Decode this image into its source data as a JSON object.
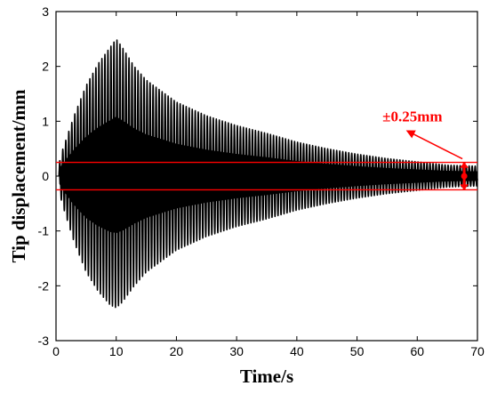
{
  "chart_data": {
    "type": "line",
    "title": "",
    "xlabel": "Time/s",
    "ylabel": "Tip displacement/mm",
    "xlim": [
      0,
      70
    ],
    "ylim": [
      -3,
      3
    ],
    "x_ticks": [
      0,
      10,
      20,
      30,
      40,
      50,
      60,
      70
    ],
    "y_ticks": [
      -3,
      -2,
      -1,
      0,
      1,
      2,
      3
    ],
    "grid": false,
    "series": [
      {
        "color": "#000000",
        "envelope_x": [
          0,
          1,
          3,
          5,
          7,
          9,
          10,
          11,
          13,
          15,
          20,
          25,
          30,
          35,
          40,
          45,
          50,
          55,
          60,
          65,
          70
        ],
        "envelope_upper": [
          0,
          0.45,
          1.1,
          1.65,
          2.05,
          2.35,
          2.5,
          2.35,
          2.0,
          1.75,
          1.35,
          1.1,
          0.92,
          0.78,
          0.62,
          0.5,
          0.4,
          0.32,
          0.26,
          0.2,
          0.18
        ],
        "envelope_lower": [
          0,
          -0.5,
          -1.2,
          -1.75,
          -2.1,
          -2.35,
          -2.4,
          -2.3,
          -2.0,
          -1.75,
          -1.35,
          -1.1,
          -0.92,
          -0.78,
          -0.62,
          -0.5,
          -0.4,
          -0.32,
          -0.26,
          -0.2,
          -0.18
        ],
        "oscillation_period": 0.5
      }
    ],
    "threshold_lines": [
      {
        "y": 0.25,
        "color": "#ff0000"
      },
      {
        "y": -0.25,
        "color": "#ff0000"
      }
    ],
    "annotations": [
      {
        "text": "±0.25mm",
        "color": "#ff0000",
        "marker_x": 67.8,
        "marker_y_range": [
          -0.25,
          0.25
        ]
      }
    ]
  }
}
